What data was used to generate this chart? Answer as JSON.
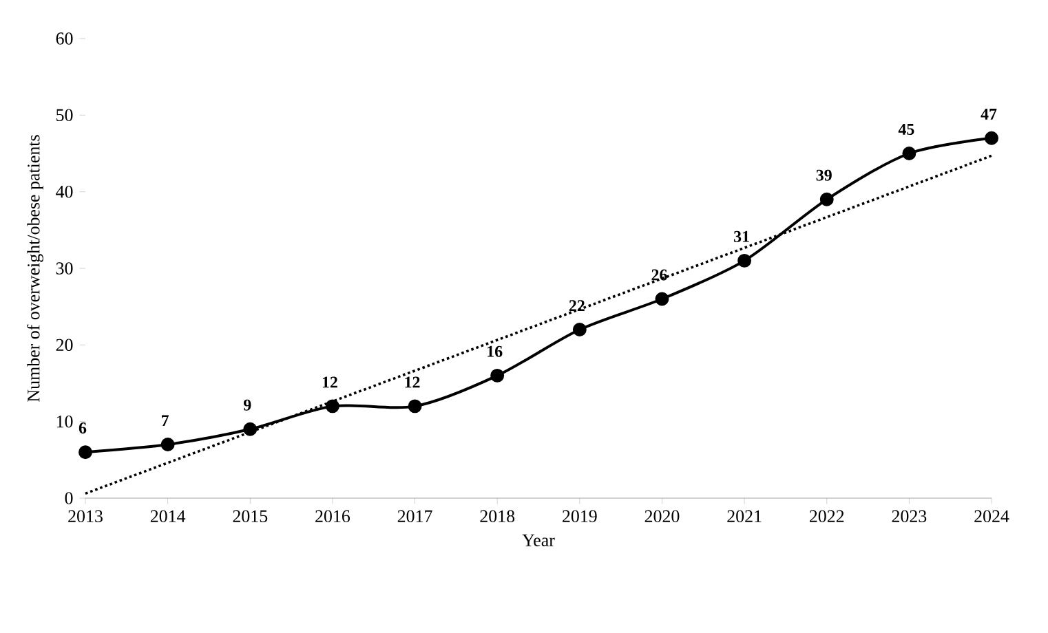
{
  "chart_data": {
    "type": "line",
    "xlabel": "Year",
    "ylabel": "Number of overweight/obese patients",
    "x": [
      2013,
      2014,
      2015,
      2016,
      2017,
      2018,
      2019,
      2020,
      2021,
      2022,
      2023,
      2024
    ],
    "series": [
      {
        "color": "#000000",
        "values": [
          6,
          7,
          9,
          12,
          12,
          16,
          22,
          26,
          31,
          39,
          45,
          47
        ],
        "value_labels": [
          "6",
          "7",
          "9",
          "12",
          "12",
          "16",
          "22",
          "26",
          "31",
          "39",
          "45",
          "47"
        ],
        "marker": "circle",
        "line_style": "solid"
      },
      {
        "type": "line",
        "color": "#000000",
        "x": [
          2013,
          2024
        ],
        "values": [
          0.6,
          44.7
        ],
        "marker": "none",
        "line_style": "dotted"
      }
    ],
    "xlim": [
      2013,
      2024
    ],
    "xticks": [
      2013,
      2014,
      2015,
      2016,
      2017,
      2018,
      2019,
      2020,
      2021,
      2022,
      2023,
      2024
    ],
    "ylim": [
      0,
      60
    ],
    "yticks": [
      0,
      10,
      20,
      30,
      40,
      50,
      60
    ],
    "grid": false
  }
}
